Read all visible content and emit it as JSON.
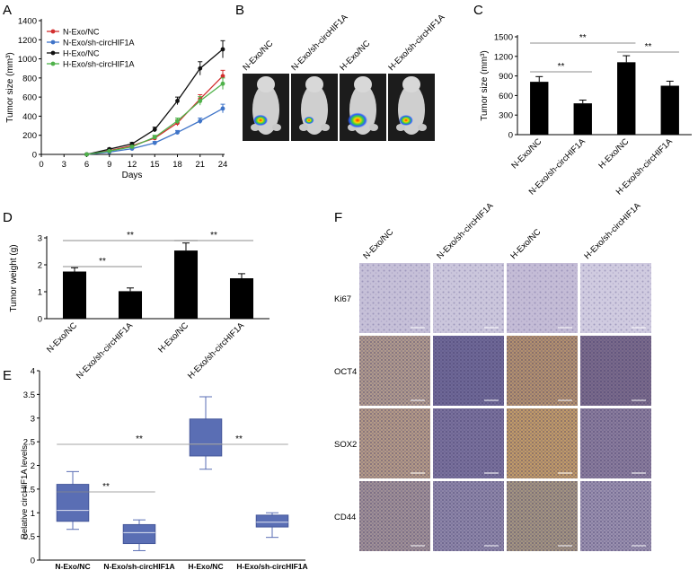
{
  "panels": {
    "A": "A",
    "B": "B",
    "C": "C",
    "D": "D",
    "E": "E",
    "F": "F"
  },
  "colors": {
    "N-Exo/NC": "#d22f2f",
    "N-Exo/sh-circHIF1A": "#3f74c8",
    "H-Exo/NC": "#111111",
    "H-Exo/sh-circHIF1A": "#4fb24a",
    "box_fill": "#5a6eb4"
  },
  "chart_data": [
    {
      "id": "A",
      "type": "line",
      "title": "",
      "xlabel": "Days",
      "ylabel": "Tumor size (mm³)",
      "x": [
        0,
        3,
        6,
        9,
        12,
        15,
        18,
        21,
        24
      ],
      "xlim": [
        0,
        24
      ],
      "ylim": [
        0,
        1400
      ],
      "yticks": [
        0,
        200,
        400,
        600,
        800,
        1000,
        1200,
        1400
      ],
      "legend_position": "top-left",
      "series": [
        {
          "name": "N-Exo/NC",
          "x": [
            6,
            9,
            12,
            15,
            18,
            21,
            24
          ],
          "values": [
            0,
            40,
            90,
            170,
            330,
            580,
            820
          ],
          "err": [
            0,
            8,
            12,
            20,
            30,
            45,
            60
          ]
        },
        {
          "name": "N-Exo/sh-circHIF1A",
          "x": [
            6,
            9,
            12,
            15,
            18,
            21,
            24
          ],
          "values": [
            0,
            25,
            60,
            120,
            230,
            350,
            480
          ],
          "err": [
            0,
            6,
            10,
            15,
            20,
            30,
            45
          ]
        },
        {
          "name": "H-Exo/NC",
          "x": [
            6,
            9,
            12,
            15,
            18,
            21,
            24
          ],
          "values": [
            0,
            55,
            110,
            260,
            560,
            900,
            1100
          ],
          "err": [
            0,
            10,
            15,
            25,
            40,
            70,
            90
          ]
        },
        {
          "name": "H-Exo/sh-circHIF1A",
          "x": [
            6,
            9,
            12,
            15,
            18,
            21,
            24
          ],
          "values": [
            0,
            35,
            80,
            180,
            350,
            560,
            740
          ],
          "err": [
            0,
            8,
            12,
            20,
            30,
            45,
            60
          ]
        }
      ]
    },
    {
      "id": "C",
      "type": "bar",
      "ylabel": "Tumor size (mm³)",
      "categories": [
        "N-Exo/NC",
        "N-Exo/sh-circHIF1A",
        "H-Exo/NC",
        "H-Exo/sh-circHIF1A"
      ],
      "values": [
        810,
        480,
        1110,
        750
      ],
      "err": [
        80,
        50,
        100,
        70
      ],
      "ylim": [
        0,
        1500
      ],
      "yticks": [
        0,
        300,
        600,
        900,
        1200,
        1500
      ],
      "significance": [
        {
          "from": 0,
          "to": 1,
          "label": "**"
        },
        {
          "from": 0,
          "to": 2,
          "label": "**"
        },
        {
          "from": 2,
          "to": 3,
          "label": "**"
        }
      ]
    },
    {
      "id": "D",
      "type": "bar",
      "ylabel": "Tumor weight (g)",
      "categories": [
        "N-Exo/NC",
        "N-Exo/sh-circHIF1A",
        "H-Exo/NC",
        "H-Exo/sh-circHIF1A"
      ],
      "values": [
        1.75,
        1.02,
        2.53,
        1.5
      ],
      "err": [
        0.14,
        0.12,
        0.28,
        0.17
      ],
      "ylim": [
        0,
        3
      ],
      "yticks": [
        0,
        1,
        2,
        3
      ],
      "significance": [
        {
          "from": 0,
          "to": 1,
          "label": "**"
        },
        {
          "from": 0,
          "to": 2,
          "label": "**"
        },
        {
          "from": 2,
          "to": 3,
          "label": "**"
        }
      ]
    },
    {
      "id": "E",
      "type": "box",
      "ylabel": "Relative circHIF1A levels",
      "categories": [
        "N-Exo/NC",
        "N-Exo/sh-circHIF1A",
        "H-Exo/NC",
        "H-Exo/sh-circHIF1A"
      ],
      "boxes": [
        {
          "min": 0.65,
          "q1": 0.82,
          "median": 1.05,
          "q3": 1.6,
          "max": 1.87
        },
        {
          "min": 0.2,
          "q1": 0.35,
          "median": 0.58,
          "q3": 0.75,
          "max": 0.85
        },
        {
          "min": 1.92,
          "q1": 2.2,
          "median": 2.45,
          "q3": 2.98,
          "max": 3.45
        },
        {
          "min": 0.48,
          "q1": 0.7,
          "median": 0.8,
          "q3": 0.95,
          "max": 1.0
        }
      ],
      "ylim": [
        0,
        4
      ],
      "yticks": [
        0,
        0.5,
        1,
        1.5,
        2,
        2.5,
        3,
        3.5,
        4
      ],
      "ytick_labels": [
        "0",
        "0.5",
        "1",
        "1.5",
        "2",
        "2.5",
        "3",
        "3.5",
        "4"
      ],
      "significance": [
        {
          "from": 0,
          "to": 1,
          "label": "**"
        },
        {
          "from": 0,
          "to": 2,
          "label": "**"
        },
        {
          "from": 2,
          "to": 3,
          "label": "**"
        }
      ]
    }
  ],
  "panel_B": {
    "groups": [
      "N-Exo/NC",
      "N-Exo/sh-circHIF1A",
      "H-Exo/NC",
      "H-Exo/sh-circHIF1A"
    ],
    "signal_scale": [
      0.62,
      0.42,
      0.85,
      0.6
    ]
  },
  "panel_F": {
    "columns": [
      "N-Exo/NC",
      "N-Exo/sh-circHIF1A",
      "H-Exo/NC",
      "H-Exo/sh-circHIF1A"
    ],
    "rows": [
      "Ki67",
      "OCT4",
      "SOX2",
      "CD44"
    ],
    "stain_colors": [
      [
        "#c6c0d8",
        "#cbc6dc",
        "#c4bcd6",
        "#d0cbe0"
      ],
      [
        "#b09a8c",
        "#6f6896",
        "#b2906e",
        "#7a6a8a"
      ],
      [
        "#b49a86",
        "#7a719c",
        "#c09a68",
        "#8a7c9c"
      ],
      [
        "#a09096",
        "#8e86a8",
        "#a39480",
        "#9a90ae"
      ]
    ]
  }
}
